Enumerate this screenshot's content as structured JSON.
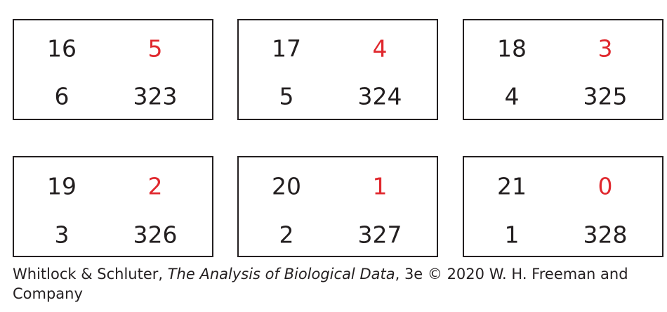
{
  "tables": [
    {
      "top_left": "16",
      "top_right": "5",
      "bottom_left": "6",
      "bottom_right": "323"
    },
    {
      "top_left": "17",
      "top_right": "4",
      "bottom_left": "5",
      "bottom_right": "324"
    },
    {
      "top_left": "18",
      "top_right": "3",
      "bottom_left": "4",
      "bottom_right": "325"
    },
    {
      "top_left": "19",
      "top_right": "2",
      "bottom_left": "3",
      "bottom_right": "326"
    },
    {
      "top_left": "20",
      "top_right": "1",
      "bottom_left": "2",
      "bottom_right": "327"
    },
    {
      "top_left": "21",
      "top_right": "0",
      "bottom_left": "1",
      "bottom_right": "328"
    }
  ],
  "colors": {
    "text": "#231f20",
    "highlight": "#e0282e",
    "border": "#231f20"
  },
  "caption": {
    "prefix": "Whitlock & Schluter, ",
    "title": "The Analysis of Biological Data",
    "suffix": ", 3e © 2020 W. H. Freeman and Company"
  }
}
